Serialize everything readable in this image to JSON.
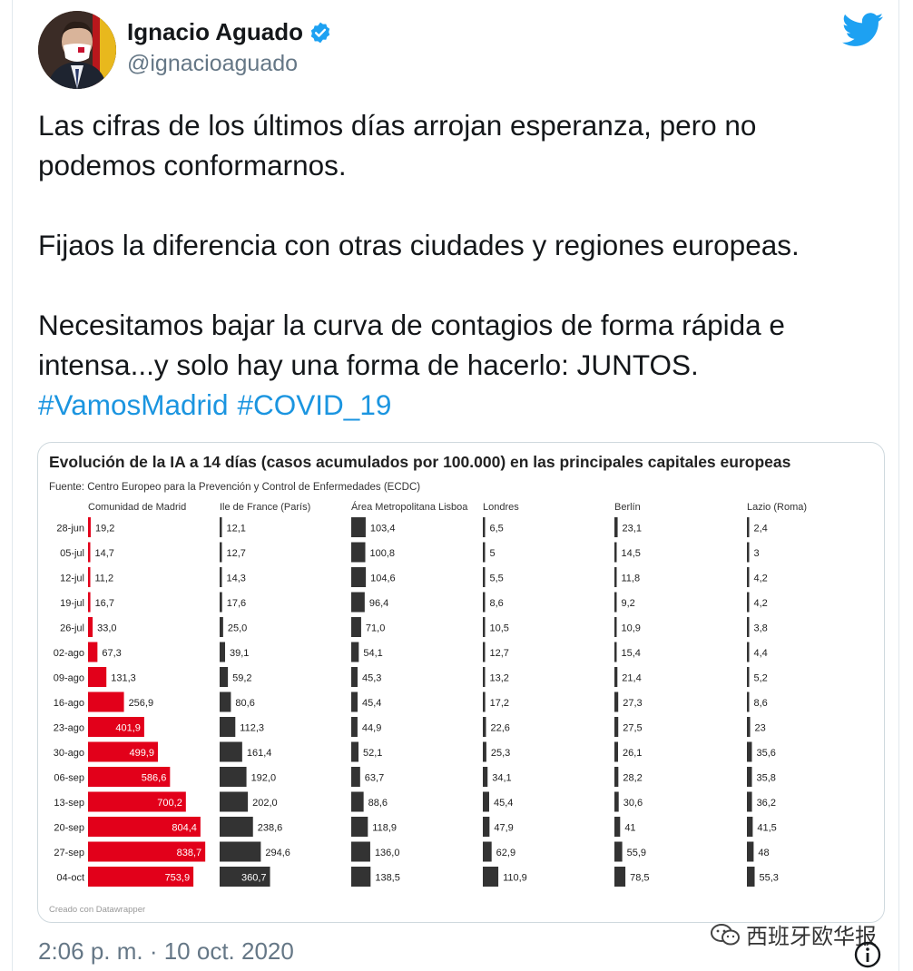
{
  "tweet": {
    "author_name": "Ignacio Aguado",
    "author_handle": "@ignacioaguado",
    "text_lines": [
      "Las cifras de los últimos días arrojan esperanza, pero no",
      "podemos conformarnos.",
      "Fijaos la diferencia con otras ciudades y regiones europeas.",
      "Necesitamos bajar la curva de contagios de forma rápida e",
      "intensa...y solo hay una forma de hacerlo: JUNTOS."
    ],
    "hashtags": [
      "#VamosMadrid",
      "#COVID_19"
    ],
    "timestamp": "2:06 p. m. · 10 oct. 2020",
    "watermark": "西班牙欧华报"
  },
  "colors": {
    "madrid_bar": "#e2001a",
    "other_bar": "#333333",
    "link": "#1b95e0",
    "verified": "#1da1f2",
    "twitter_bird": "#1da1f2"
  },
  "icons": [
    "verified-badge-icon",
    "twitter-bird-icon",
    "info-icon",
    "wechat-icon"
  ],
  "chart_data": {
    "type": "bar",
    "orientation": "horizontal",
    "title": "Evolución de la IA a 14 días (casos acumulados por 100.000) en las principales capitales europeas",
    "subtitle": "Fuente: Centro Europeo para la Prevención y Control de Enfermedades (ECDC)",
    "credit": "Creado con Datawrapper",
    "categories": [
      "28-jun",
      "05-jul",
      "12-jul",
      "19-jul",
      "26-jul",
      "02-ago",
      "09-ago",
      "16-ago",
      "23-ago",
      "30-ago",
      "06-sep",
      "13-sep",
      "20-sep",
      "27-sep",
      "04-oct"
    ],
    "series": [
      {
        "name": "Comunidad de Madrid",
        "values": [
          19.2,
          14.7,
          11.2,
          16.7,
          33.0,
          67.3,
          131.3,
          256.9,
          401.9,
          499.9,
          586.6,
          700.2,
          804.4,
          838.7,
          753.9
        ],
        "labels": [
          "19,2",
          "14,7",
          "11,2",
          "16,7",
          "33,0",
          "67,3",
          "131,3",
          "256,9",
          "401,9",
          "499,9",
          "586,6",
          "700,2",
          "804,4",
          "838,7",
          "753,9"
        ]
      },
      {
        "name": "Ile de France (París)",
        "values": [
          12.1,
          12.7,
          14.3,
          17.6,
          25.0,
          39.1,
          59.2,
          80.6,
          112.3,
          161.4,
          192.0,
          202.0,
          238.6,
          294.6,
          360.7
        ],
        "labels": [
          "12,1",
          "12,7",
          "14,3",
          "17,6",
          "25,0",
          "39,1",
          "59,2",
          "80,6",
          "112,3",
          "161,4",
          "192,0",
          "202,0",
          "238,6",
          "294,6",
          "360,7"
        ]
      },
      {
        "name": "Área Metropolitana Lisboa",
        "values": [
          103.4,
          100.8,
          104.6,
          96.4,
          71.0,
          54.1,
          45.3,
          45.4,
          44.9,
          52.1,
          63.7,
          88.6,
          118.9,
          136.0,
          138.5
        ],
        "labels": [
          "103,4",
          "100,8",
          "104,6",
          "96,4",
          "71,0",
          "54,1",
          "45,3",
          "45,4",
          "44,9",
          "52,1",
          "63,7",
          "88,6",
          "118,9",
          "136,0",
          "138,5"
        ]
      },
      {
        "name": "Londres",
        "values": [
          6.5,
          5,
          5.5,
          8.6,
          10.5,
          12.7,
          13.2,
          17.2,
          22.6,
          25.3,
          34.1,
          45.4,
          47.9,
          62.9,
          110.9
        ],
        "labels": [
          "6,5",
          "5",
          "5,5",
          "8,6",
          "10,5",
          "12,7",
          "13,2",
          "17,2",
          "22,6",
          "25,3",
          "34,1",
          "45,4",
          "47,9",
          "62,9",
          "110,9"
        ]
      },
      {
        "name": "Berlín",
        "values": [
          23.1,
          14.5,
          11.8,
          9.2,
          10.9,
          15.4,
          21.4,
          27.3,
          27.5,
          26.1,
          28.2,
          30.6,
          41,
          55.9,
          78.5
        ],
        "labels": [
          "23,1",
          "14,5",
          "11,8",
          "9,2",
          "10,9",
          "15,4",
          "21,4",
          "27,3",
          "27,5",
          "26,1",
          "28,2",
          "30,6",
          "41",
          "55,9",
          "78,5"
        ]
      },
      {
        "name": "Lazio (Roma)",
        "values": [
          2.4,
          3,
          4.2,
          4.2,
          3.8,
          4.4,
          5.2,
          8.6,
          23,
          35.6,
          35.8,
          36.2,
          41.5,
          48,
          55.3
        ],
        "labels": [
          "2,4",
          "3",
          "4,2",
          "4,2",
          "3,8",
          "4,4",
          "5,2",
          "8,6",
          "23",
          "35,6",
          "35,8",
          "36,2",
          "41,5",
          "48",
          "55,3"
        ]
      }
    ],
    "xlim": [
      0,
      900
    ],
    "grid": false,
    "legend": "none"
  }
}
